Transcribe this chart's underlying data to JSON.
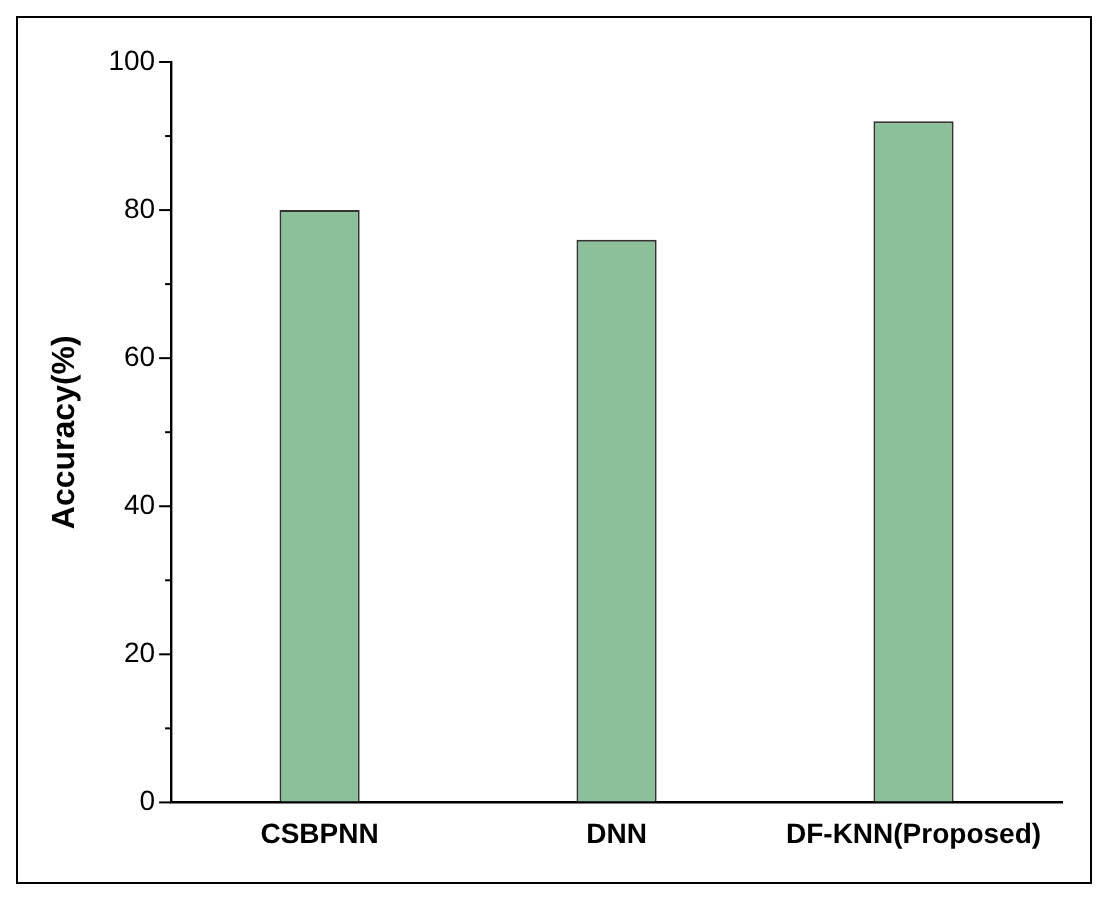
{
  "chart_data": {
    "type": "bar",
    "ylabel": "Accuracy(%)",
    "categories": [
      "CSBPNN",
      "DNN",
      "DF-KNN(Proposed)"
    ],
    "values": [
      80,
      76,
      92
    ],
    "color": "#8cc09a",
    "ylim": [
      0,
      100
    ],
    "yticks": [
      0,
      {
        "value": 10,
        "label": null
      },
      20,
      {
        "value": 30,
        "label": null
      },
      40,
      {
        "value": 50,
        "label": null
      },
      60,
      {
        "value": 70,
        "label": null
      },
      80,
      {
        "value": 90,
        "label": null
      },
      100
    ],
    "grid": false,
    "legend": false
  }
}
